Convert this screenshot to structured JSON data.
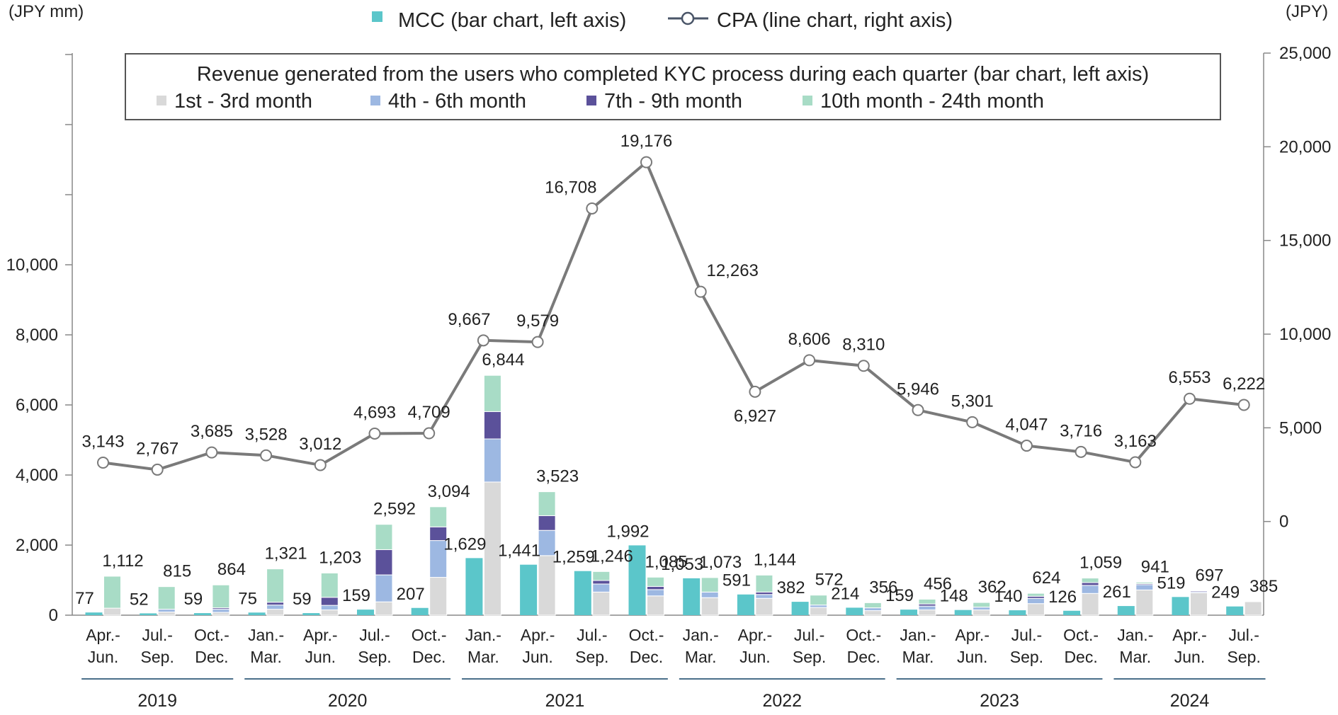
{
  "chart_data": {
    "type": "bar",
    "left_axis": {
      "unit": "(JPY mm)",
      "ticks": [
        "0",
        "2,000",
        "4,000",
        "6,000",
        "8,000",
        "10,000"
      ],
      "tick_values": [
        0,
        2000,
        4000,
        6000,
        8000,
        10000
      ],
      "ylim": [
        0,
        16000
      ]
    },
    "right_axis": {
      "unit": "(JPY)",
      "ticks": [
        "0",
        "5,000",
        "10,000",
        "15,000",
        "20,000",
        "25,000"
      ],
      "tick_values": [
        0,
        5000,
        10000,
        15000,
        20000,
        25000
      ],
      "ylim": [
        -5000,
        25000
      ]
    },
    "legend_top": {
      "mcc": "MCC (bar chart, left axis)",
      "cpa": "CPA (line chart, right axis)"
    },
    "inset_legend": {
      "title": "Revenue generated from the users who completed KYC process during each quarter (bar chart, left axis)",
      "items": [
        "1st - 3rd month",
        "4th - 6th month",
        "7th - 9th month",
        "10th month - 24th month"
      ]
    },
    "colors": {
      "mcc": "#5BC6CA",
      "m1_3": "#D9D9D9",
      "m4_6": "#9DB8E2",
      "m7_9": "#5B519A",
      "m10_24": "#A8DCC6",
      "cpa_line": "#7A7A7A",
      "axis": "#888888",
      "year_line": "#4A6F8A"
    },
    "categories": [
      [
        "Apr.-",
        "Jun."
      ],
      [
        "Jul.-",
        "Sep."
      ],
      [
        "Oct.-",
        "Dec."
      ],
      [
        "Jan.-",
        "Mar."
      ],
      [
        "Apr.-",
        "Jun."
      ],
      [
        "Jul.-",
        "Sep."
      ],
      [
        "Oct.-",
        "Dec."
      ],
      [
        "Jan.-",
        "Mar."
      ],
      [
        "Apr.-",
        "Jun."
      ],
      [
        "Jul.-",
        "Sep."
      ],
      [
        "Oct.-",
        "Dec."
      ],
      [
        "Jan.-",
        "Mar."
      ],
      [
        "Apr.-",
        "Jun."
      ],
      [
        "Jul.-",
        "Sep."
      ],
      [
        "Oct.-",
        "Dec."
      ],
      [
        "Jan.-",
        "Mar."
      ],
      [
        "Apr.-",
        "Jun."
      ],
      [
        "Jul.-",
        "Sep."
      ],
      [
        "Oct.-",
        "Dec."
      ],
      [
        "Jan.-",
        "Mar."
      ],
      [
        "Apr.-",
        "Jun."
      ],
      [
        "Jul.-",
        "Sep."
      ]
    ],
    "years": [
      {
        "label": "2019",
        "start": 0,
        "end": 2
      },
      {
        "label": "2020",
        "start": 3,
        "end": 6
      },
      {
        "label": "2021",
        "start": 7,
        "end": 10
      },
      {
        "label": "2022",
        "start": 11,
        "end": 14
      },
      {
        "label": "2023",
        "start": 15,
        "end": 18
      },
      {
        "label": "2024",
        "start": 19,
        "end": 21
      }
    ],
    "mcc": [
      77,
      52,
      59,
      75,
      59,
      159,
      207,
      1629,
      1441,
      1259,
      1992,
      1053,
      591,
      382,
      214,
      159,
      148,
      140,
      126,
      261,
      519,
      249
    ],
    "mcc_labels": [
      "77",
      "52",
      "59",
      "75",
      "59",
      "159",
      "207",
      "1,629",
      "1,441",
      "1,259",
      "1,992",
      "1,053",
      "591",
      "382",
      "214",
      "159",
      "148",
      "140",
      "126",
      "261",
      "519",
      "249"
    ],
    "revenue_total_labels": [
      "1,112",
      "815",
      "864",
      "1,321",
      "1,203",
      "2,592",
      "3,094",
      "6,844",
      "3,523",
      "1,246",
      "1,085",
      "1,073",
      "1,144",
      "572",
      "356",
      "456",
      "362",
      "624",
      "1,059",
      "941",
      "697",
      "385"
    ],
    "revenue_stacks": [
      [
        200,
        0,
        0,
        912
      ],
      [
        90,
        80,
        0,
        645
      ],
      [
        80,
        90,
        40,
        654
      ],
      [
        170,
        120,
        80,
        951
      ],
      [
        150,
        130,
        230,
        693
      ],
      [
        380,
        770,
        720,
        722
      ],
      [
        1080,
        1050,
        390,
        574
      ],
      [
        3800,
        1230,
        780,
        1034
      ],
      [
        1700,
        720,
        420,
        683
      ],
      [
        660,
        230,
        100,
        256
      ],
      [
        550,
        180,
        90,
        265
      ],
      [
        500,
        160,
        0,
        413
      ],
      [
        480,
        110,
        70,
        484
      ],
      [
        220,
        70,
        0,
        282
      ],
      [
        130,
        80,
        0,
        146
      ],
      [
        150,
        110,
        60,
        136
      ],
      [
        150,
        80,
        0,
        132
      ],
      [
        330,
        150,
        60,
        84
      ],
      [
        620,
        230,
        80,
        129
      ],
      [
        720,
        150,
        30,
        41
      ],
      [
        640,
        30,
        27,
        0
      ],
      [
        385,
        0,
        0,
        0
      ]
    ],
    "cpa": [
      3143,
      2767,
      3685,
      3528,
      3012,
      4693,
      4709,
      9667,
      9579,
      16708,
      19176,
      12263,
      6927,
      8606,
      8310,
      5946,
      5301,
      4047,
      3716,
      3163,
      6553,
      6222
    ],
    "cpa_labels": [
      "3,143",
      "2,767",
      "3,685",
      "3,528",
      "3,012",
      "4,693",
      "4,709",
      "9,667",
      "9,579",
      "16,708",
      "19,176",
      "12,263",
      "6,927",
      "8,606",
      "8,310",
      "5,946",
      "5,301",
      "4,047",
      "3,716",
      "3,163",
      "6,553",
      "6,222"
    ]
  }
}
